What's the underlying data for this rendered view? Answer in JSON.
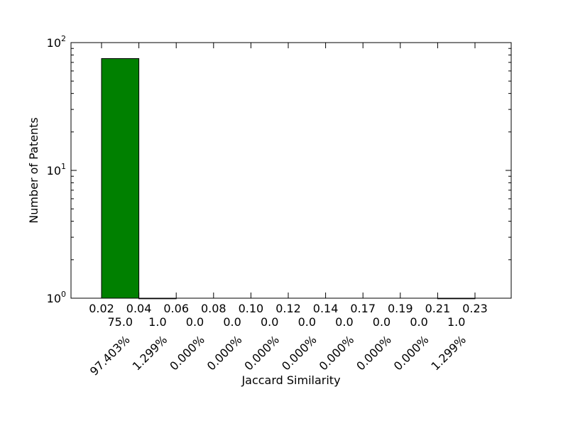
{
  "chart_data": {
    "type": "bar",
    "title": "",
    "xlabel": "Jaccard Similarity",
    "ylabel": "Number of Patents",
    "yscale": "log",
    "ylim": [
      1,
      100
    ],
    "y_ticks": [
      {
        "value": 1,
        "base": "10",
        "exp": "0"
      },
      {
        "value": 10,
        "base": "10",
        "exp": "1"
      },
      {
        "value": 100,
        "base": "10",
        "exp": "2"
      }
    ],
    "x_tick_labels": [
      "0.02",
      "0.04",
      "0.06",
      "0.08",
      "0.10",
      "0.12",
      "0.14",
      "0.17",
      "0.19",
      "0.21",
      "0.23"
    ],
    "bins": [
      {
        "start": "0.02",
        "end": "0.04",
        "count": 75.0,
        "count_label": "75.0",
        "percent_label": "97.403%"
      },
      {
        "start": "0.04",
        "end": "0.06",
        "count": 1.0,
        "count_label": "1.0",
        "percent_label": "1.299%"
      },
      {
        "start": "0.06",
        "end": "0.08",
        "count": 0.0,
        "count_label": "0.0",
        "percent_label": "0.000%"
      },
      {
        "start": "0.08",
        "end": "0.10",
        "count": 0.0,
        "count_label": "0.0",
        "percent_label": "0.000%"
      },
      {
        "start": "0.10",
        "end": "0.12",
        "count": 0.0,
        "count_label": "0.0",
        "percent_label": "0.000%"
      },
      {
        "start": "0.12",
        "end": "0.14",
        "count": 0.0,
        "count_label": "0.0",
        "percent_label": "0.000%"
      },
      {
        "start": "0.14",
        "end": "0.17",
        "count": 0.0,
        "count_label": "0.0",
        "percent_label": "0.000%"
      },
      {
        "start": "0.17",
        "end": "0.19",
        "count": 0.0,
        "count_label": "0.0",
        "percent_label": "0.000%"
      },
      {
        "start": "0.19",
        "end": "0.21",
        "count": 0.0,
        "count_label": "0.0",
        "percent_label": "0.000%"
      },
      {
        "start": "0.21",
        "end": "0.23",
        "count": 1.0,
        "count_label": "1.0",
        "percent_label": "1.299%"
      }
    ],
    "bar_color": "#008000",
    "grid": false,
    "legend": "none"
  }
}
